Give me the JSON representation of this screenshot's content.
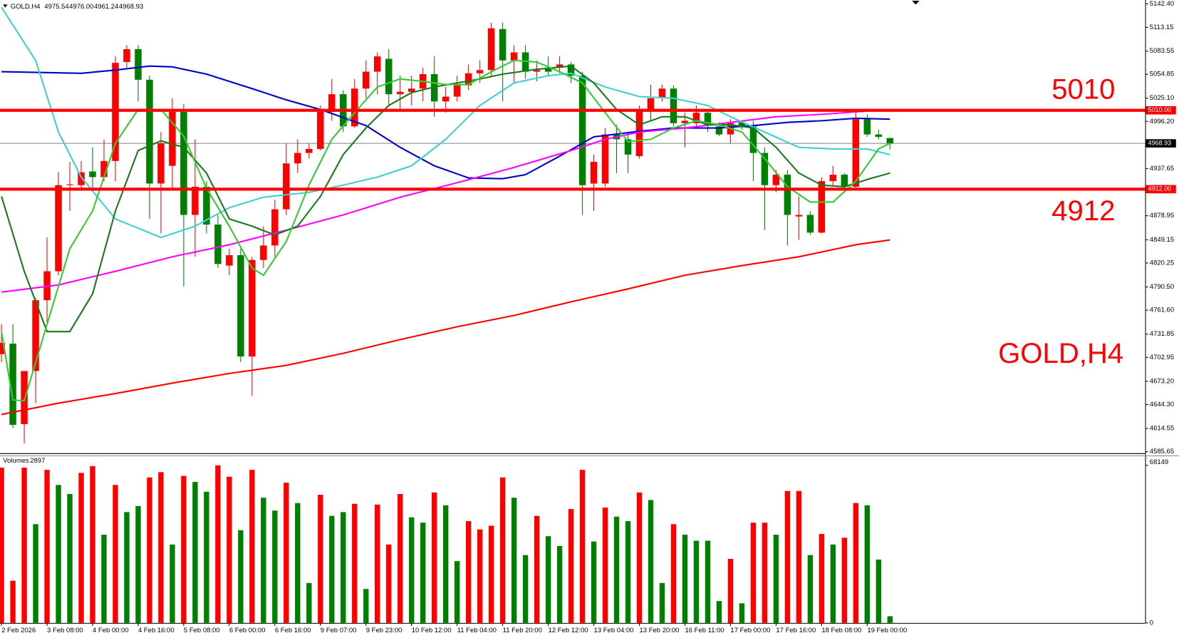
{
  "chart_data": [
    {
      "type": "candlestick",
      "title": "GOLD,H4",
      "header_ohlc": [
        "4975.54",
        "4976.00",
        "4961.24",
        "4968.93"
      ],
      "up_color": "#ff0000",
      "down_color": "#008000",
      "open": [
        4707,
        4720,
        4620,
        4686,
        4774,
        4810,
        4917,
        4917,
        4934,
        4927,
        4947,
        5070,
        5086,
        5048,
        4919,
        4941,
        5008,
        4880,
        4915,
        4868,
        4817,
        4830,
        4704,
        4824,
        4842,
        4887,
        4944,
        4957,
        4962,
        5008,
        5030,
        4990,
        5037,
        5058,
        5074,
        5030,
        5033,
        5037,
        5055,
        5021,
        5027,
        5041,
        5056,
        5060,
        5111,
        5072,
        5082,
        5058,
        5063,
        5063,
        5067,
        5053,
        4919,
        4919,
        4980,
        4974,
        4953,
        5011,
        5025,
        5037,
        4994,
        4994,
        5007,
        4990,
        4980,
        4995,
        4990,
        4957,
        4917,
        4930,
        4878,
        4880,
        4858,
        4922,
        4930,
        4915,
        4999,
        4980,
        4975.54
      ],
      "high": [
        4744,
        4744,
        4686,
        4777,
        4852,
        4933,
        4946,
        4947,
        4964,
        4974,
        5077,
        5091,
        5091,
        5053,
        4983,
        5025,
        5018,
        4974,
        4922,
        4880,
        4838,
        4838,
        4828,
        4866,
        4899,
        4969,
        4974,
        4969,
        5016,
        5049,
        5035,
        5049,
        5072,
        5082,
        5086,
        5053,
        5053,
        5063,
        5077,
        5039,
        5053,
        5067,
        5072,
        5119,
        5119,
        5091,
        5091,
        5072,
        5077,
        5077,
        5070,
        5058,
        4955,
        4988,
        4992,
        4983,
        5016,
        5042,
        5042,
        5041,
        5007,
        5016,
        5008,
        4995,
        4999,
        4997,
        4997,
        4964,
        4936,
        4936,
        4903,
        4885,
        4927,
        4941,
        4932,
        5007,
        5005,
        4986,
        4976
      ],
      "low": [
        4697,
        4615,
        4596,
        4646,
        4744,
        4805,
        4885,
        4913,
        4913,
        4922,
        4922,
        5063,
        5021,
        4875,
        4857,
        4913,
        4791,
        4828,
        4857,
        4814,
        4805,
        4697,
        4655,
        4814,
        4828,
        4880,
        4932,
        4950,
        4960,
        4997,
        4983,
        4988,
        5025,
        5030,
        5016,
        5011,
        5016,
        5021,
        5002,
        5007,
        5021,
        5035,
        5044,
        5053,
        5021,
        5044,
        5049,
        5046,
        5053,
        5056,
        5044,
        4880,
        4885,
        4915,
        4932,
        4932,
        4950,
        4997,
        5021,
        4990,
        4964,
        4988,
        4983,
        4978,
        4969,
        4986,
        4922,
        4861,
        4908,
        4842,
        4849,
        4855,
        4857,
        4915,
        4911,
        4911,
        4977,
        4974,
        4961.24
      ],
      "close": [
        4721,
        4619,
        4686,
        4774,
        4810,
        4917,
        4918,
        4933,
        4927,
        4947,
        5069,
        5086,
        5048,
        4919,
        4969,
        5008,
        4880,
        4915,
        4868,
        4819,
        4830,
        4704,
        4824,
        4842,
        4887,
        4944,
        4957,
        4962,
        5008,
        5030,
        4990,
        5037,
        5058,
        5077,
        5030,
        5033,
        5037,
        5055,
        5021,
        5027,
        5041,
        5056,
        5060,
        5112,
        5072,
        5082,
        5058,
        5060,
        5058,
        5067,
        5053,
        4917,
        4946,
        4980,
        4974,
        4955,
        5011,
        5025,
        5037,
        4994,
        4997,
        5007,
        4992,
        4980,
        4994,
        4990,
        4957,
        4917,
        4930,
        4880,
        4880,
        4858,
        4922,
        4930,
        4915,
        4999,
        4980,
        4977,
        4968.93
      ],
      "lines": [
        {
          "color": "#0000cc",
          "x": [
            0,
            7,
            10,
            13,
            15,
            18,
            22,
            25,
            28,
            32,
            35,
            38,
            41,
            44,
            46,
            49,
            52,
            56,
            59,
            63,
            66,
            69,
            72,
            75,
            78
          ],
          "values": [
            5058,
            5056,
            5060,
            5065,
            5064,
            5055,
            5037,
            5023,
            5011,
            4991,
            4964,
            4941,
            4926,
            4925,
            4930,
            4953,
            4977,
            4984,
            4988,
            4988,
            4991,
            4995,
            4997,
            5000,
            4999
          ]
        },
        {
          "color": "#ff00ff",
          "x": [
            0,
            5,
            10,
            15,
            20,
            25,
            30,
            35,
            40,
            45,
            50,
            53,
            56,
            60,
            64,
            68,
            72,
            75,
            76
          ],
          "values": [
            4784,
            4793,
            4810,
            4828,
            4843,
            4861,
            4880,
            4902,
            4920,
            4939,
            4960,
            4974,
            4983,
            4988,
            4995,
            5002,
            5005,
            5008,
            5009
          ]
        },
        {
          "color": "#ff0000",
          "x": [
            0,
            5,
            10,
            15,
            20,
            25,
            30,
            35,
            40,
            45,
            50,
            55,
            60,
            65,
            70,
            75,
            78
          ],
          "values": [
            4632,
            4646,
            4658,
            4671,
            4683,
            4693,
            4708,
            4725,
            4741,
            4755,
            4772,
            4788,
            4805,
            4817,
            4828,
            4843,
            4849
          ]
        },
        {
          "color": "#40d0d0",
          "x": [
            0,
            3,
            5,
            7,
            10,
            14,
            17,
            20,
            23,
            27,
            30,
            33,
            36,
            39,
            42,
            45,
            48,
            50,
            53,
            56,
            59,
            62,
            64,
            67,
            70,
            73,
            76,
            78
          ],
          "values": [
            5138,
            5072,
            4983,
            4927,
            4875,
            4852,
            4866,
            4889,
            4902,
            4908,
            4917,
            4927,
            4941,
            4974,
            5016,
            5044,
            5053,
            5056,
            5039,
            5027,
            5025,
            5016,
            5002,
            4983,
            4964,
            4962,
            4962,
            4955
          ]
        },
        {
          "color": "#1a7a1a",
          "x": [
            0,
            2,
            4,
            6,
            8,
            10,
            12,
            14,
            16,
            18,
            20,
            22,
            24,
            26,
            28,
            30,
            32,
            34,
            36,
            38,
            40,
            42,
            44,
            47,
            50,
            52,
            54,
            56,
            58,
            60,
            62,
            64,
            66,
            68,
            70,
            72,
            74,
            76,
            78
          ],
          "values": [
            4903,
            4810,
            4735,
            4735,
            4782,
            4885,
            4960,
            4972,
            4964,
            4932,
            4875,
            4866,
            4855,
            4866,
            4903,
            4955,
            4988,
            5016,
            5032,
            5039,
            5044,
            5049,
            5055,
            5061,
            5065,
            5044,
            5011,
            4992,
            5002,
            5002,
            4992,
            4992,
            4988,
            4964,
            4932,
            4917,
            4915,
            4924,
            4932
          ]
        },
        {
          "color": "#33cc33",
          "x": [
            0,
            1,
            2,
            4,
            6,
            8,
            10,
            12,
            14,
            16,
            18,
            20,
            22,
            23,
            25,
            27,
            29,
            31,
            33,
            35,
            37,
            39,
            41,
            43,
            45,
            47,
            49,
            51,
            53,
            55,
            57,
            59,
            61,
            63,
            65,
            67,
            69,
            71,
            73,
            75,
            77,
            78
          ],
          "values": [
            4735,
            4650,
            4649,
            4744,
            4838,
            4885,
            4969,
            5011,
            5011,
            4978,
            4913,
            4866,
            4814,
            4805,
            4847,
            4917,
            4974,
            5007,
            5039,
            5049,
            5046,
            5042,
            5042,
            5058,
            5072,
            5070,
            5058,
            5044,
            5007,
            4971,
            4974,
            4988,
            4997,
            4992,
            4983,
            4950,
            4915,
            4896,
            4896,
            4922,
            4962,
            4969
          ]
        }
      ],
      "levels": [
        {
          "value": 5010,
          "label": "5010.00",
          "color": "#ff0000"
        },
        {
          "value": 4912,
          "label": "4912.00",
          "color": "#ff0000"
        }
      ],
      "last_price": 4968.93,
      "xlim": [
        -0.13,
        100.4
      ],
      "ylim": [
        4583.8,
        5147.1
      ],
      "yticks": [
        {
          "value": 5142.4,
          "label": "5142.40"
        },
        {
          "value": 5113.15,
          "label": "5113.15"
        },
        {
          "value": 5083.55,
          "label": "5083.55"
        },
        {
          "value": 5054.85,
          "label": "5054.85"
        },
        {
          "value": 5025.1,
          "label": "5025.10"
        },
        {
          "value": 4996.2,
          "label": "4996.20"
        },
        {
          "value": 4937.65,
          "label": "4937.65"
        },
        {
          "value": 4878.95,
          "label": "4878.95"
        },
        {
          "value": 4849.15,
          "label": "4849.15"
        },
        {
          "value": 4820.25,
          "label": "4820.25"
        },
        {
          "value": 4790.5,
          "label": "4790.50"
        },
        {
          "value": 4761.6,
          "label": "4761.60"
        },
        {
          "value": 4731.85,
          "label": "4731.85"
        },
        {
          "value": 4702.95,
          "label": "4702.95"
        },
        {
          "value": 4673.2,
          "label": "4673.20"
        },
        {
          "value": 4644.3,
          "label": "4644.30"
        },
        {
          "value": 4614.55,
          "label": "4614.55"
        },
        {
          "value": 4585.65,
          "label": "4585.65"
        }
      ],
      "xticks": [
        {
          "value": 0,
          "label": "2 Feb 2026"
        },
        {
          "value": 4,
          "label": "3 Feb 08:00"
        },
        {
          "value": 8,
          "label": "4 Feb 00:00"
        },
        {
          "value": 12,
          "label": "4 Feb 16:00"
        },
        {
          "value": 16,
          "label": "5 Feb 08:00"
        },
        {
          "value": 20,
          "label": "6 Feb 00:00"
        },
        {
          "value": 24,
          "label": "6 Feb 16:00"
        },
        {
          "value": 28,
          "label": "9 Feb 07:00"
        },
        {
          "value": 32,
          "label": "9 Feb 23:00"
        },
        {
          "value": 36,
          "label": "10 Feb 12:00"
        },
        {
          "value": 40,
          "label": "11 Feb 04:00"
        },
        {
          "value": 44,
          "label": "11 Feb 20:00"
        },
        {
          "value": 48,
          "label": "12 Feb 12:00"
        },
        {
          "value": 52,
          "label": "13 Feb 04:00"
        },
        {
          "value": 56,
          "label": "13 Feb 20:00"
        },
        {
          "value": 60,
          "label": "16 Feb 11:00"
        },
        {
          "value": 64,
          "label": "17 Feb 00:00"
        },
        {
          "value": 68,
          "label": "17 Feb 16:00"
        },
        {
          "value": 72,
          "label": "18 Feb 08:00"
        },
        {
          "value": 76,
          "label": "19 Feb 00:00"
        }
      ]
    },
    {
      "type": "bar",
      "title": "Volumes",
      "values": [
        67156,
        18256,
        67156,
        42706,
        66178,
        59658,
        55746,
        64874,
        67808,
        38142,
        59658,
        47922,
        50530,
        62918,
        65200,
        33904,
        63570,
        60962,
        56724,
        68134,
        63244,
        40098,
        66178,
        54116,
        48574,
        60636,
        51834,
        17278,
        55420,
        46292,
        47922,
        51508,
        14670,
        51182,
        33904,
        55746,
        45640,
        43358,
        56398,
        50856,
        26732,
        44010,
        40424,
        42054,
        62918,
        54116,
        29340,
        46292,
        37490,
        33252,
        49226,
        66178,
        35208,
        49878,
        45966,
        44010,
        56398,
        53138,
        17278,
        42706,
        38142,
        35534,
        35534,
        9454,
        27710,
        8476,
        43358,
        43358,
        38142,
        57050,
        57050,
        29340,
        38468,
        33904,
        36838,
        51834,
        50856,
        27384,
        2897
      ],
      "colors": [
        "red",
        "red",
        "red",
        "green",
        "red",
        "green",
        "green",
        "red",
        "red",
        "green",
        "red",
        "green",
        "green",
        "red",
        "red",
        "green",
        "red",
        "green",
        "green",
        "red",
        "red",
        "green",
        "red",
        "green",
        "green",
        "red",
        "green",
        "green",
        "red",
        "green",
        "green",
        "red",
        "green",
        "red",
        "red",
        "red",
        "green",
        "green",
        "red",
        "green",
        "green",
        "red",
        "red",
        "red",
        "red",
        "green",
        "green",
        "red",
        "green",
        "green",
        "red",
        "red",
        "green",
        "red",
        "green",
        "green",
        "red",
        "green",
        "green",
        "red",
        "green",
        "green",
        "green",
        "green",
        "red",
        "green",
        "red",
        "red",
        "green",
        "red",
        "red",
        "green",
        "red",
        "green",
        "red",
        "red",
        "green",
        "green",
        "green"
      ],
      "ylim": [
        0,
        68149
      ],
      "yticks": [
        68149,
        0
      ]
    }
  ]
}
